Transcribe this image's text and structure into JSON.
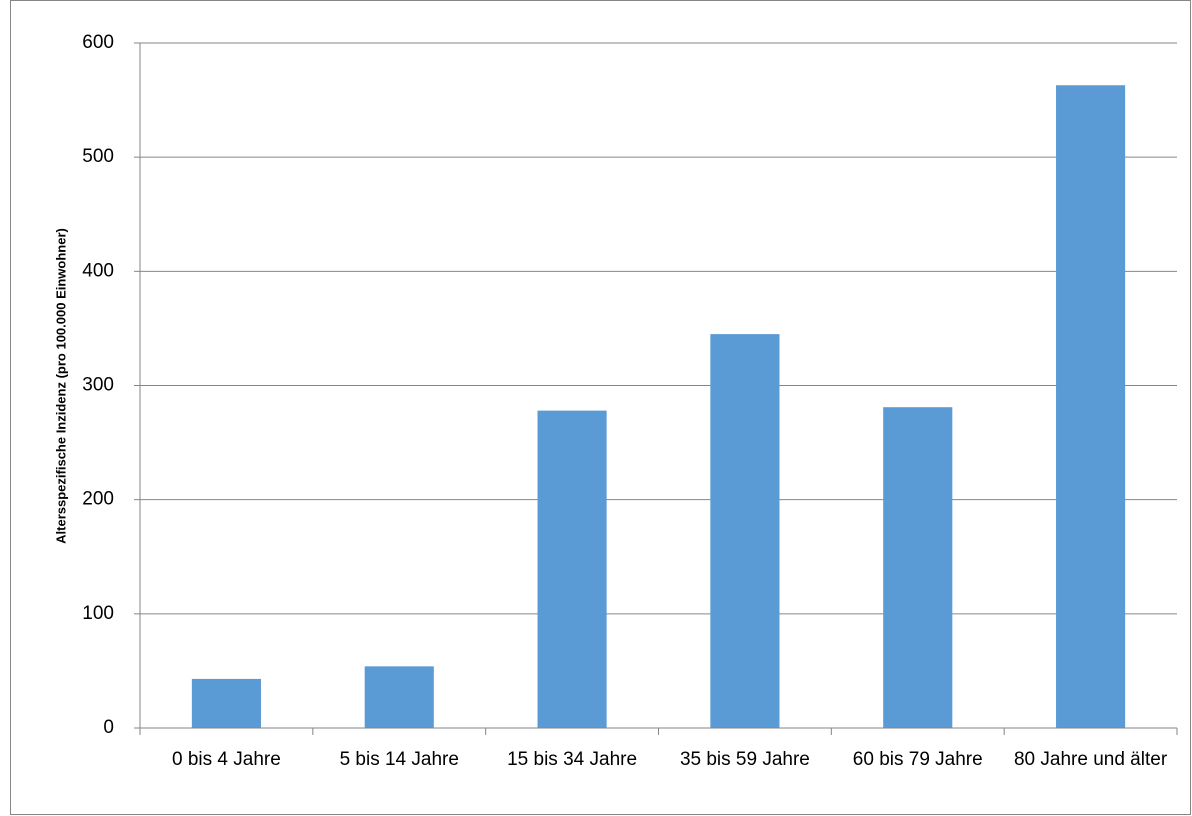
{
  "chart_data": {
    "type": "bar",
    "y_label": "Altersspezifische Inzidenz (pro 100.000 Einwohner)",
    "categories": [
      "0 bis 4 Jahre",
      "5 bis 14 Jahre",
      "15 bis 34 Jahre",
      "35 bis 59 Jahre",
      "60 bis 79 Jahre",
      "80 Jahre und älter"
    ],
    "values": [
      43,
      54,
      278,
      345,
      281,
      563
    ],
    "color": "#5b9bd5",
    "ylim": [
      0,
      600
    ],
    "yticks": [
      0,
      100,
      200,
      300,
      400,
      500,
      600
    ],
    "grid": true
  }
}
